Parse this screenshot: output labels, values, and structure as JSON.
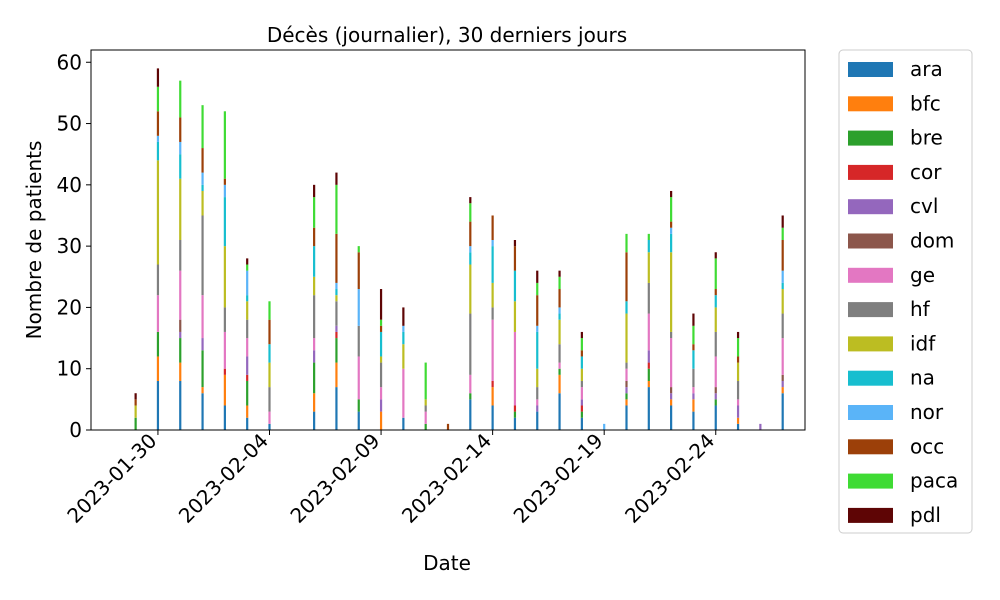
{
  "chart_data": {
    "type": "bar",
    "stacked": true,
    "title": "Décès (journalier), 30 derniers jours",
    "xlabel": "Date",
    "ylabel": "Nombre de patients",
    "ylim": [
      0,
      62
    ],
    "xlim": [
      "2023-01-27",
      "2023-02-28"
    ],
    "yticks": [
      0,
      10,
      20,
      30,
      40,
      50,
      60
    ],
    "xticks": [
      "2023-01-30",
      "2023-02-04",
      "2023-02-09",
      "2023-02-14",
      "2023-02-19",
      "2023-02-24"
    ],
    "grid": false,
    "legend_position": "outside-right",
    "dates": [
      "2023-01-29",
      "2023-01-30",
      "2023-01-31",
      "2023-02-01",
      "2023-02-02",
      "2023-02-03",
      "2023-02-04",
      "2023-02-05",
      "2023-02-06",
      "2023-02-07",
      "2023-02-08",
      "2023-02-09",
      "2023-02-10",
      "2023-02-11",
      "2023-02-12",
      "2023-02-13",
      "2023-02-14",
      "2023-02-15",
      "2023-02-16",
      "2023-02-17",
      "2023-02-18",
      "2023-02-19",
      "2023-02-20",
      "2023-02-21",
      "2023-02-22",
      "2023-02-23",
      "2023-02-24",
      "2023-02-25",
      "2023-02-26",
      "2023-02-27"
    ],
    "series": [
      {
        "name": "ara",
        "color": "#1f77b4",
        "values": [
          0,
          8,
          8,
          6,
          4,
          2,
          1,
          0,
          3,
          7,
          3,
          0,
          2,
          0,
          0,
          5,
          4,
          2,
          3,
          6,
          2,
          0,
          4,
          7,
          4,
          3,
          4,
          1,
          0,
          6
        ]
      },
      {
        "name": "bfc",
        "color": "#ff7f0e",
        "values": [
          0,
          4,
          3,
          1,
          5,
          2,
          0,
          0,
          3,
          4,
          0,
          3,
          0,
          0,
          0,
          0,
          3,
          0,
          0,
          3,
          0,
          0,
          1,
          1,
          1,
          2,
          0,
          1,
          0,
          1
        ]
      },
      {
        "name": "bre",
        "color": "#2ca02c",
        "values": [
          2,
          4,
          4,
          6,
          0,
          4,
          0,
          0,
          5,
          4,
          2,
          0,
          0,
          1,
          0,
          1,
          0,
          1,
          0,
          1,
          1,
          0,
          1,
          2,
          0,
          0,
          1,
          0,
          0,
          0
        ]
      },
      {
        "name": "cor",
        "color": "#d62728",
        "values": [
          0,
          0,
          0,
          0,
          1,
          1,
          0,
          0,
          0,
          1,
          0,
          0,
          0,
          0,
          0,
          0,
          1,
          1,
          0,
          0,
          1,
          0,
          0,
          1,
          0,
          0,
          0,
          0,
          0,
          0
        ]
      },
      {
        "name": "cvl",
        "color": "#9467bd",
        "values": [
          0,
          0,
          1,
          2,
          0,
          3,
          0,
          0,
          2,
          1,
          0,
          2,
          0,
          0,
          0,
          0,
          0,
          0,
          1,
          0,
          1,
          0,
          1,
          2,
          1,
          1,
          1,
          2,
          1,
          1
        ]
      },
      {
        "name": "dom",
        "color": "#8c564b",
        "values": [
          0,
          0,
          2,
          0,
          0,
          0,
          0,
          0,
          0,
          0,
          0,
          0,
          0,
          0,
          0,
          0,
          0,
          0,
          0,
          0,
          0,
          0,
          1,
          0,
          1,
          0,
          1,
          0,
          0,
          1
        ]
      },
      {
        "name": "ge",
        "color": "#e377c2",
        "values": [
          0,
          6,
          8,
          7,
          6,
          3,
          2,
          0,
          2,
          0,
          7,
          2,
          8,
          2,
          0,
          3,
          10,
          12,
          1,
          1,
          2,
          0,
          2,
          6,
          8,
          1,
          5,
          1,
          0,
          6
        ]
      },
      {
        "name": "hf",
        "color": "#7f7f7f",
        "values": [
          0,
          5,
          5,
          13,
          4,
          3,
          4,
          0,
          7,
          4,
          5,
          4,
          0,
          1,
          0,
          10,
          2,
          0,
          2,
          3,
          1,
          0,
          1,
          5,
          1,
          3,
          4,
          3,
          0,
          4
        ]
      },
      {
        "name": "idf",
        "color": "#bcbd22",
        "values": [
          2,
          17,
          10,
          4,
          10,
          3,
          4,
          0,
          3,
          1,
          0,
          1,
          4,
          1,
          0,
          8,
          4,
          5,
          3,
          4,
          2,
          0,
          8,
          5,
          13,
          0,
          4,
          3,
          0,
          4
        ]
      },
      {
        "name": "na",
        "color": "#17becf",
        "values": [
          0,
          3,
          4,
          1,
          8,
          1,
          3,
          0,
          5,
          1,
          0,
          4,
          2,
          0,
          0,
          2,
          6,
          5,
          6,
          1,
          2,
          0,
          2,
          2,
          3,
          3,
          2,
          0,
          0,
          1
        ]
      },
      {
        "name": "nor",
        "color": "#5ab4f8",
        "values": [
          0,
          1,
          2,
          2,
          2,
          4,
          0,
          0,
          0,
          1,
          6,
          0,
          1,
          0,
          0,
          1,
          1,
          0,
          1,
          1,
          0,
          1,
          0,
          0,
          1,
          0,
          0,
          0,
          0,
          2
        ]
      },
      {
        "name": "occ",
        "color": "#9c4009",
        "values": [
          1,
          4,
          4,
          4,
          1,
          0,
          4,
          0,
          3,
          8,
          6,
          1,
          0,
          0,
          1,
          4,
          4,
          4,
          5,
          3,
          1,
          0,
          8,
          0,
          1,
          1,
          1,
          1,
          0,
          5
        ]
      },
      {
        "name": "paca",
        "color": "#3fdb34",
        "values": [
          0,
          4,
          6,
          7,
          11,
          1,
          3,
          0,
          5,
          8,
          1,
          1,
          0,
          6,
          0,
          3,
          0,
          0,
          2,
          2,
          2,
          0,
          3,
          1,
          4,
          3,
          5,
          3,
          0,
          2
        ]
      },
      {
        "name": "pdl",
        "color": "#5e0505",
        "values": [
          1,
          3,
          0,
          0,
          0,
          1,
          0,
          0,
          2,
          2,
          0,
          5,
          3,
          0,
          0,
          1,
          0,
          1,
          2,
          1,
          1,
          0,
          0,
          0,
          1,
          2,
          1,
          1,
          0,
          2
        ]
      }
    ]
  }
}
